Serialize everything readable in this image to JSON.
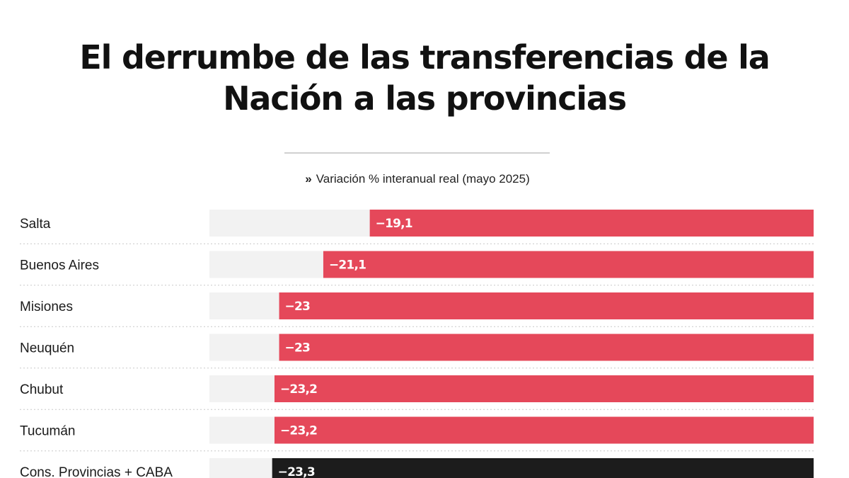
{
  "chart_data": {
    "type": "bar",
    "orientation": "horizontal",
    "title_lines": [
      "El derrumbe de las transferencias de la",
      "Nación a las provincias"
    ],
    "subtitle_marker": "»",
    "subtitle": "Variación % interanual real (mayo 2025)",
    "categories": [
      "Salta",
      "Buenos Aires",
      "Misiones",
      "Neuquén",
      "Chubut",
      "Tucumán",
      "Cons. Provincias + CABA"
    ],
    "values": [
      -19.1,
      -21.1,
      -23,
      -23,
      -23.2,
      -23.2,
      -23.3
    ],
    "value_labels": [
      "−19,1",
      "−21,1",
      "−23",
      "−23",
      "−23,2",
      "−23,2",
      "−23,3"
    ],
    "highlight": [
      "normal",
      "normal",
      "normal",
      "normal",
      "normal",
      "normal",
      "total"
    ],
    "xlim": [
      -26,
      0
    ],
    "colors": {
      "bar": "#e5485a",
      "total_bar": "#1c1c1c",
      "track": "#f2f2f2",
      "row_separator": "#c8c8c8"
    },
    "legend": "none",
    "grid": false
  }
}
